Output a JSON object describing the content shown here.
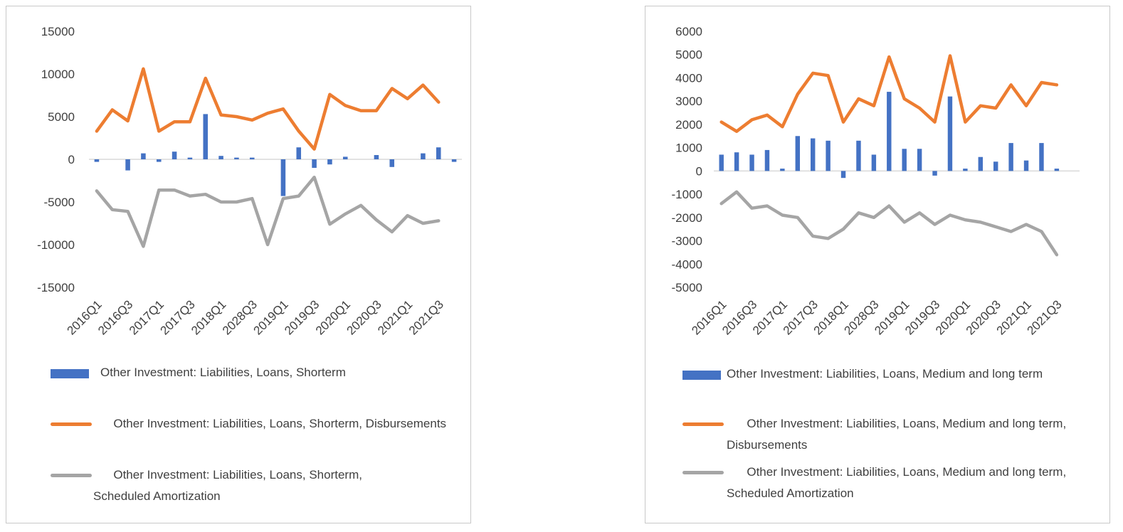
{
  "colors": {
    "bar": "#4472c4",
    "disb": "#ed7d31",
    "amort": "#a5a5a5"
  },
  "chart_data": [
    {
      "type": "bar",
      "x_labels": [
        "2016Q1",
        "2016Q3",
        "2017Q1",
        "2017Q3",
        "2018Q1",
        "2028Q3",
        "2019Q1",
        "2019Q3",
        "2020Q1",
        "2020Q3",
        "2021Q1",
        "2021Q3"
      ],
      "ylim": [
        -15000,
        15000
      ],
      "yticks": [
        "15000",
        "10000",
        "5000",
        "0",
        "-5000",
        "-10000",
        "-15000"
      ],
      "ytick_values": [
        15000,
        10000,
        5000,
        0,
        -5000,
        -10000,
        -15000
      ],
      "grid": false,
      "legend_position": "bottom",
      "series": [
        {
          "name": "Other Investment: Liabilities, Loans, Shorterm",
          "type": "bar",
          "values": [
            -300,
            0,
            -1300,
            700,
            -300,
            900,
            200,
            5300,
            400,
            200,
            200,
            0,
            -4300,
            1400,
            -1000,
            -600,
            300,
            0,
            500,
            -900,
            0,
            700,
            1400,
            -300
          ]
        },
        {
          "name": "      Other Investment: Liabilities, Loans, Shorterm, Disbursements",
          "type": "line",
          "values": [
            3300,
            5800,
            4500,
            10600,
            3300,
            4400,
            4400,
            9500,
            5200,
            5000,
            4600,
            5400,
            5900,
            3300,
            1200,
            7600,
            6300,
            5700,
            5700,
            8300,
            7100,
            8700,
            6700,
            null
          ]
        },
        {
          "name": "      Other Investment: Liabilities, Loans, Shorterm, Scheduled Amortization",
          "type": "line",
          "values": [
            -3700,
            -5900,
            -6100,
            -10200,
            -3600,
            -3600,
            -4300,
            -4100,
            -5000,
            -5000,
            -4600,
            -10000,
            -4600,
            -4300,
            -2100,
            -7600,
            -6400,
            -5400,
            -7100,
            -8500,
            -6600,
            -7500,
            -7200,
            null
          ]
        }
      ]
    },
    {
      "type": "bar",
      "x_labels": [
        "2016Q1",
        "2016Q3",
        "2017Q1",
        "2017Q3",
        "2018Q1",
        "2028Q3",
        "2019Q1",
        "2019Q3",
        "2020Q1",
        "2020Q3",
        "2021Q1",
        "2021Q3"
      ],
      "ylim": [
        -5000,
        6000
      ],
      "yticks": [
        "6000",
        "5000",
        "4000",
        "3000",
        "2000",
        "1000",
        "0",
        "-1000",
        "-2000",
        "-3000",
        "-4000",
        "-5000"
      ],
      "ytick_values": [
        6000,
        5000,
        4000,
        3000,
        2000,
        1000,
        0,
        -1000,
        -2000,
        -3000,
        -4000,
        -5000
      ],
      "grid": false,
      "legend_position": "bottom",
      "series": [
        {
          "name": "Other Investment: Liabilities, Loans, Medium and long term",
          "type": "bar",
          "values": [
            700,
            800,
            700,
            900,
            100,
            1500,
            1400,
            1300,
            -300,
            1300,
            700,
            3400,
            950,
            950,
            -200,
            3200,
            100,
            600,
            400,
            1200,
            450,
            1200,
            100,
            null
          ]
        },
        {
          "name": "      Other Investment: Liabilities, Loans, Medium and long term, Disbursements",
          "type": "line",
          "values": [
            2100,
            1700,
            2200,
            2400,
            1900,
            3300,
            4200,
            4100,
            2100,
            3100,
            2800,
            4900,
            3100,
            2700,
            2100,
            4950,
            2100,
            2800,
            2700,
            3700,
            2800,
            3800,
            3700,
            null
          ]
        },
        {
          "name": "      Other Investment: Liabilities, Loans, Medium and long term, Scheduled Amortization",
          "type": "line",
          "values": [
            -1400,
            -900,
            -1600,
            -1500,
            -1900,
            -2000,
            -2800,
            -2900,
            -2500,
            -1800,
            -2000,
            -1500,
            -2200,
            -1800,
            -2300,
            -1900,
            -2100,
            -2200,
            -2400,
            -2600,
            -2300,
            -2600,
            -3600,
            null
          ]
        }
      ]
    }
  ]
}
